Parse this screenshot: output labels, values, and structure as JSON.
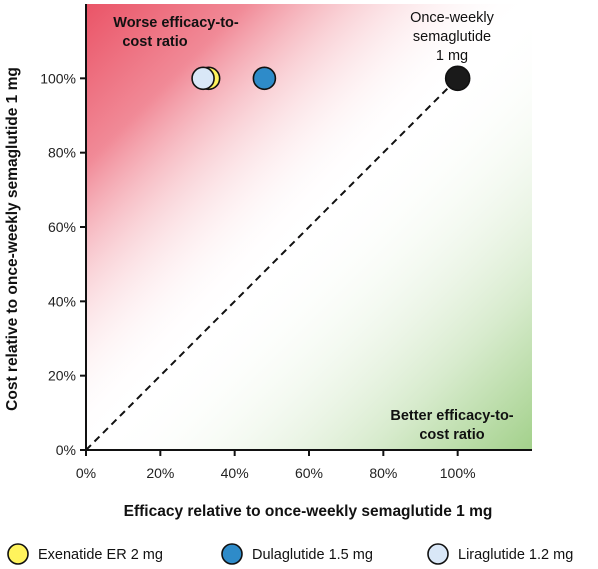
{
  "chart_data": {
    "type": "scatter",
    "xlabel": "Efficacy relative to once-weekly semaglutide 1 mg",
    "ylabel": "Cost relative to once-weekly semaglutide 1 mg",
    "xlim": [
      0,
      120
    ],
    "ylim": [
      0,
      120
    ],
    "x_ticks": [
      "0%",
      "20%",
      "40%",
      "60%",
      "80%",
      "100%"
    ],
    "y_ticks": [
      "0%",
      "20%",
      "40%",
      "60%",
      "80%",
      "100%"
    ],
    "x_tick_values": [
      0,
      20,
      40,
      60,
      80,
      100
    ],
    "y_tick_values": [
      0,
      20,
      40,
      60,
      80,
      100
    ],
    "reference_line": {
      "style": "dashed",
      "from": [
        0,
        0
      ],
      "to": [
        100,
        100
      ]
    },
    "region_labels": {
      "worse": [
        "Worse efficacy-to-",
        "cost ratio"
      ],
      "better": [
        "Better efficacy-to-",
        "cost ratio"
      ]
    },
    "annotation": [
      "Once-weekly",
      "semaglutide",
      "1 mg"
    ],
    "points": [
      {
        "name": "Exenatide ER 2 mg",
        "x": 33,
        "y": 100,
        "color": "#FFF35C"
      },
      {
        "name": "Liraglutide 1.2 mg",
        "x": 31.5,
        "y": 100,
        "color": "#D9E7F7"
      },
      {
        "name": "Dulaglutide 1.5 mg",
        "x": 48,
        "y": 100,
        "color": "#2E8BC9"
      },
      {
        "name": "Once-weekly semaglutide 1 mg",
        "x": 100,
        "y": 100,
        "color": "#1A1A1A"
      }
    ],
    "legend": [
      {
        "label": "Exenatide ER 2 mg",
        "color": "#FFF35C"
      },
      {
        "label": "Dulaglutide 1.5 mg",
        "color": "#2E8BC9"
      },
      {
        "label": "Liraglutide 1.2 mg",
        "color": "#D9E7F7"
      }
    ],
    "colors": {
      "worse_region": "#E94B5F",
      "better_region": "#8CC56E"
    },
    "legend_position": "bottom",
    "grid": false
  }
}
